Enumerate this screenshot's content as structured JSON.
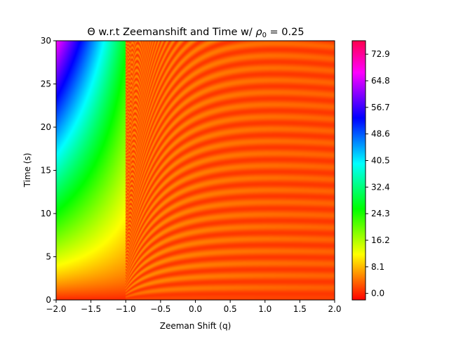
{
  "chart_data": {
    "type": "heatmap",
    "title": "Θ w.r.t Zeemanshift and Time w/ ρ0 = 0.25",
    "title_parts": {
      "prefix": "Θ w.r.t Zeemanshift and Time w/ ",
      "symbol": "ρ",
      "subscript": "0",
      "suffix": " = 0.25"
    },
    "xlabel": "Zeeman Shift (q)",
    "ylabel": "Time (s)",
    "xlim": [
      -2.0,
      2.0
    ],
    "ylim": [
      0,
      30
    ],
    "xticks": [
      -2.0,
      -1.5,
      -1.0,
      -0.5,
      0.0,
      0.5,
      1.0,
      1.5,
      2.0
    ],
    "xtick_labels": [
      "−2.0",
      "−1.5",
      "−1.0",
      "−0.5",
      "0.0",
      "0.5",
      "1.0",
      "1.5",
      "2.0"
    ],
    "yticks": [
      0,
      5,
      10,
      15,
      20,
      25,
      30
    ],
    "ytick_labels": [
      "0",
      "5",
      "10",
      "15",
      "20",
      "25",
      "30"
    ],
    "colorbar": {
      "colormap": "hsv",
      "range": [
        -2.0,
        77.0
      ],
      "ticks": [
        0.0,
        8.1,
        16.2,
        24.3,
        32.4,
        40.5,
        48.6,
        56.7,
        64.8,
        72.9
      ],
      "tick_labels": [
        "0.0",
        "8.1",
        "16.2",
        "24.3",
        "32.4",
        "40.5",
        "48.6",
        "56.7",
        "64.8",
        "72.9"
      ]
    },
    "features": [
      {
        "region": "q < -1.0",
        "description": "Θ grows steadily with time, reaching ~75 at q=-2, t=30"
      },
      {
        "region": "q = -1.0",
        "description": "sharp boundary / resonance line"
      },
      {
        "region": "q > -1.0",
        "description": "Θ stays near 0–8 with curved oscillation fringes"
      }
    ],
    "grid": false
  }
}
